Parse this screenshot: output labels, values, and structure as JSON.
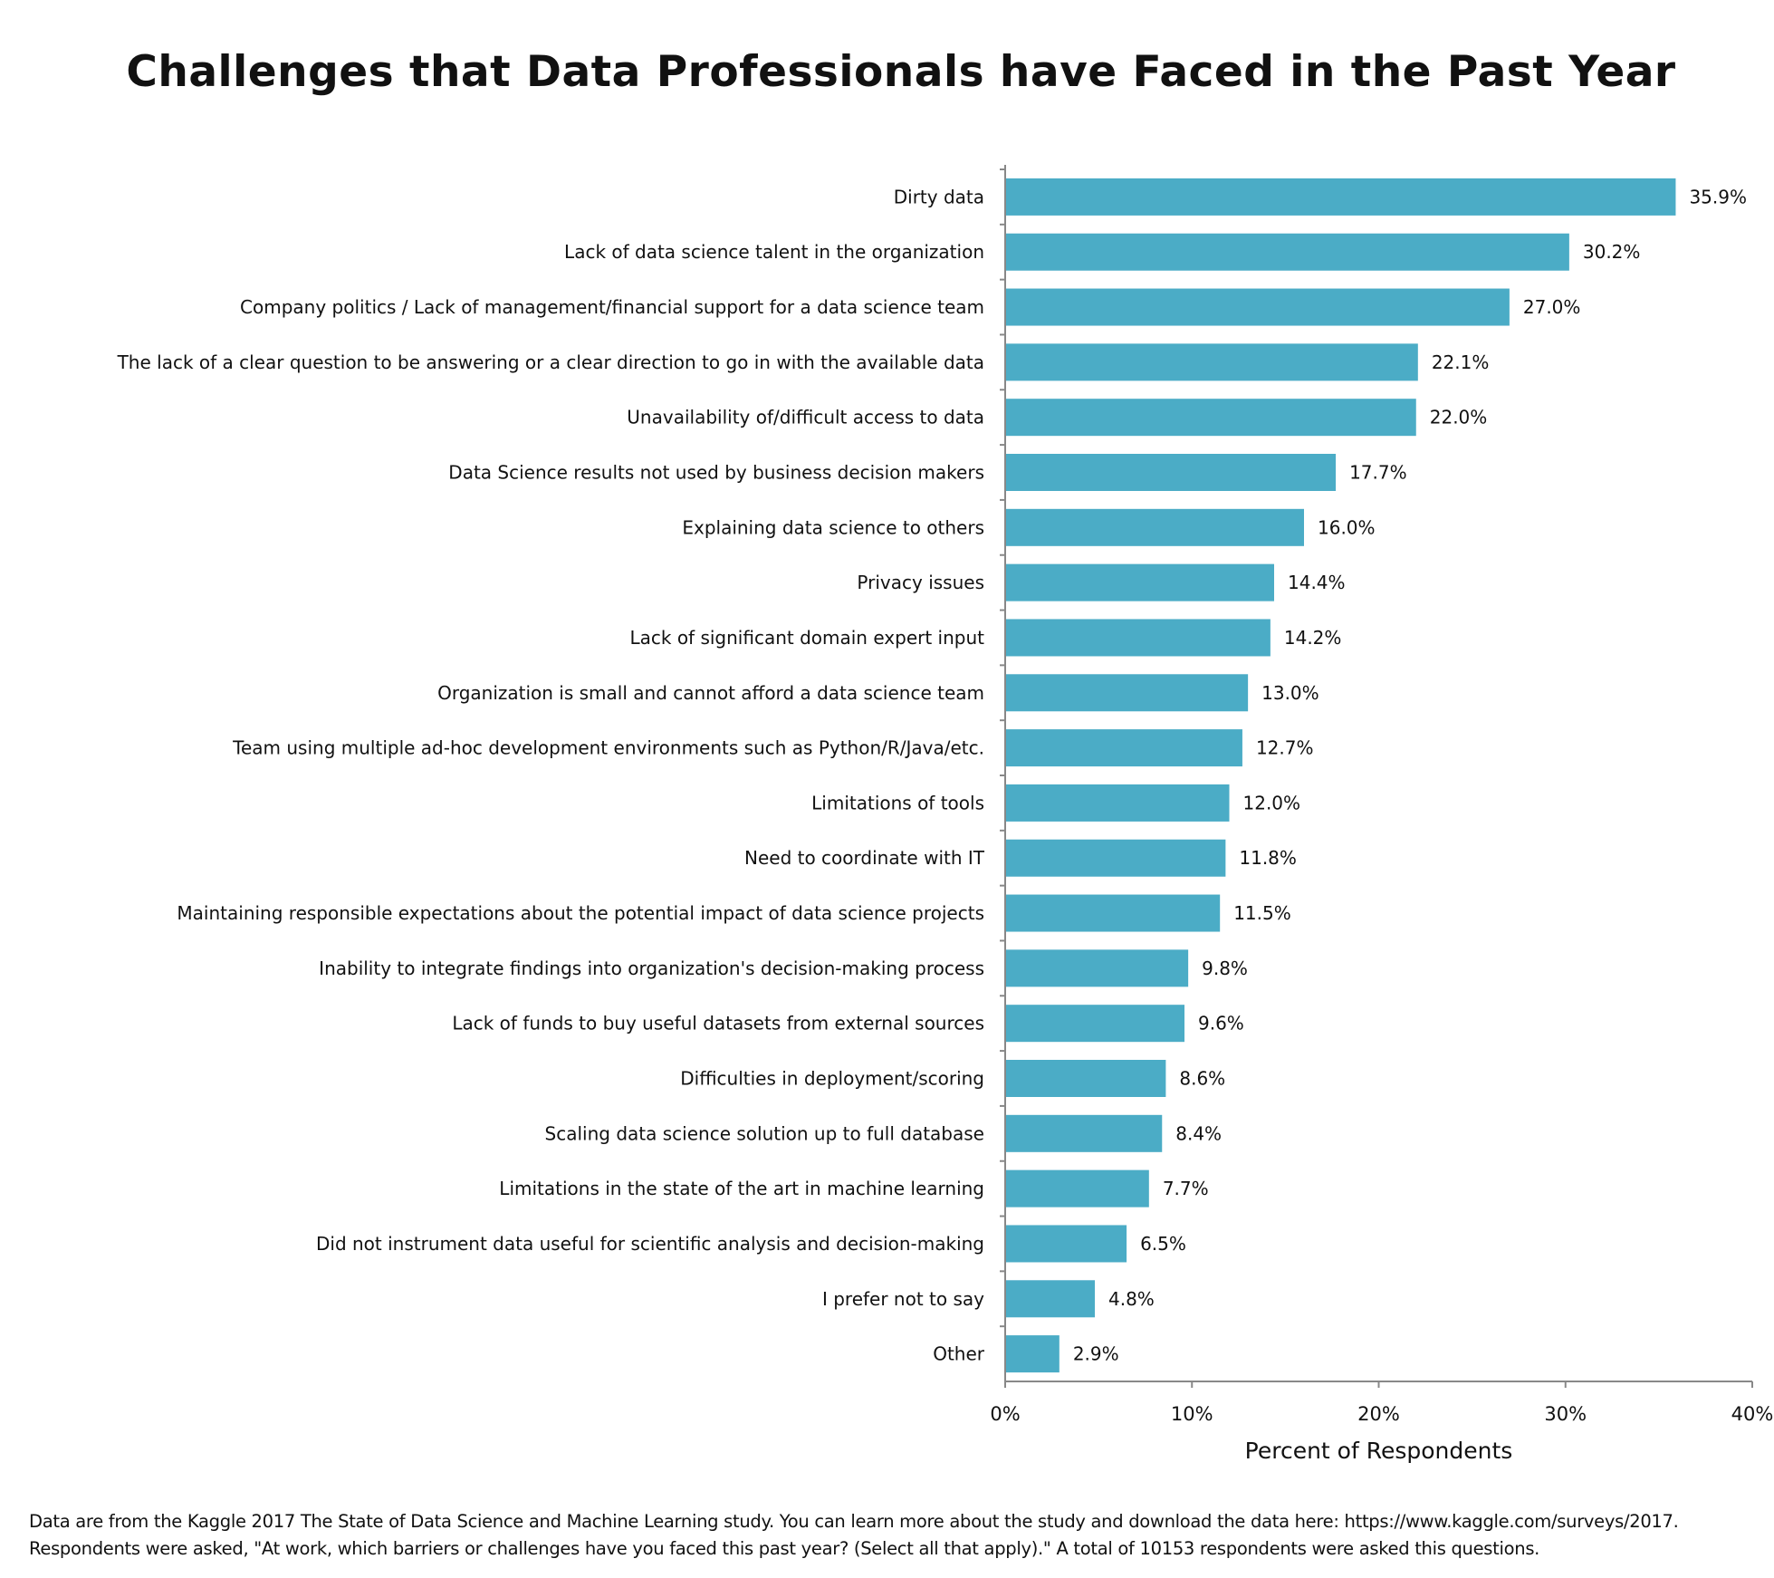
{
  "chart_data": {
    "type": "bar",
    "orientation": "horizontal",
    "title": "Challenges that Data Professionals have Faced in the Past Year",
    "xlabel": "Percent of Respondents",
    "ylabel": "",
    "xlim": [
      0,
      40
    ],
    "xticks": [
      "0%",
      "10%",
      "20%",
      "30%",
      "40%"
    ],
    "grid": false,
    "bar_color": "#4BACC6",
    "categories": [
      "Dirty data",
      "Lack of data science talent in the organization",
      "Company politics / Lack of management/financial support for a data science team",
      "The lack of a clear question to be answering or a clear direction to go in with the available data",
      "Unavailability of/difficult access to data",
      "Data Science results not used by business decision makers",
      "Explaining data science to others",
      "Privacy issues",
      "Lack of significant domain expert input",
      "Organization is small and cannot afford a data science team",
      "Team using multiple ad-hoc development environments such as Python/R/Java/etc.",
      "Limitations of tools",
      "Need to coordinate with IT",
      "Maintaining responsible expectations about the potential impact of data science projects",
      "Inability to integrate findings into organization's decision-making process",
      "Lack of funds to buy useful datasets from external sources",
      "Difficulties in deployment/scoring",
      "Scaling data science solution up to full database",
      "Limitations in the state of the art in machine learning",
      "Did not instrument data useful for scientific analysis and decision-making",
      "I prefer not to say",
      "Other"
    ],
    "values": [
      35.9,
      30.2,
      27.0,
      22.1,
      22.0,
      17.7,
      16.0,
      14.4,
      14.2,
      13.0,
      12.7,
      12.0,
      11.8,
      11.5,
      9.8,
      9.6,
      8.6,
      8.4,
      7.7,
      6.5,
      4.8,
      2.9
    ],
    "value_labels": [
      "35.9%",
      "30.2%",
      "27.0%",
      "22.1%",
      "22.0%",
      "17.7%",
      "16.0%",
      "14.4%",
      "14.2%",
      "13.0%",
      "12.7%",
      "12.0%",
      "11.8%",
      "11.5%",
      "9.8%",
      "9.6%",
      "8.6%",
      "8.4%",
      "7.7%",
      "6.5%",
      "4.8%",
      "2.9%"
    ]
  },
  "footnote": {
    "line1": "Data are from the Kaggle 2017 The State of Data Science and Machine Learning study. You can learn more about the study and download the data here: https://www.kaggle.com/surveys/2017.",
    "line2": "Respondents were asked, \"At work, which barriers or challenges have you faced this past year? (Select all that apply).\" A total of 10153 respondents were asked this questions."
  }
}
